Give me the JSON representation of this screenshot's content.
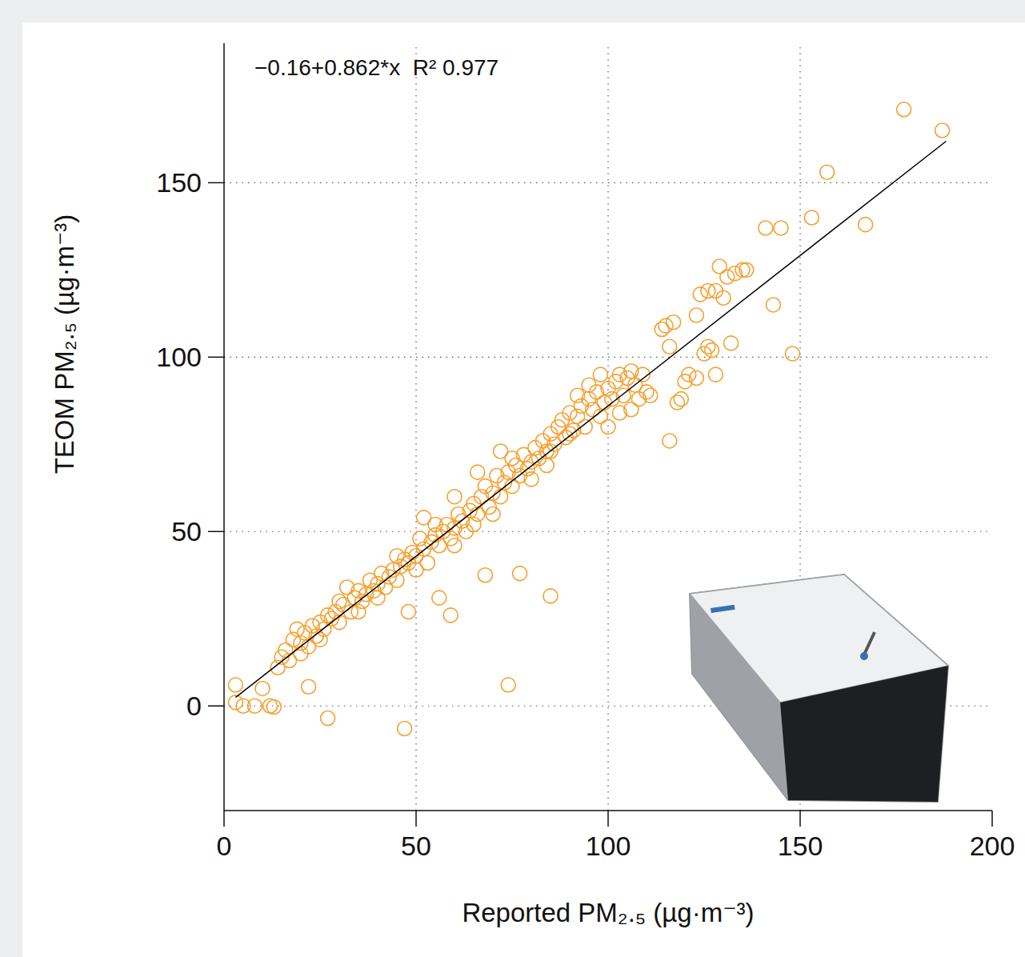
{
  "chart_data": {
    "type": "scatter",
    "x_label": "Reported PM₂.₅ (µg·m⁻³)",
    "y_label": "TEOM PM₂.₅ (µg·m⁻³)",
    "xlim": [
      0,
      200
    ],
    "ylim": [
      -30,
      190
    ],
    "xticks": [
      0,
      50,
      100,
      150,
      200
    ],
    "yticks": [
      0,
      50,
      100,
      150
    ],
    "grid": true,
    "fit": {
      "label": "−0.16+0.862*x  R² 0.977",
      "intercept": -0.16,
      "slope": 0.862,
      "x": [
        3,
        188
      ]
    },
    "series": [
      {
        "color": "#f5a030",
        "marker": "circle",
        "x": [
          3,
          3,
          5,
          8,
          10,
          12,
          13,
          22,
          27,
          47,
          74,
          77,
          68,
          59,
          48,
          85,
          116,
          118,
          143,
          148,
          167,
          153,
          157,
          177,
          187,
          141,
          145,
          133,
          135,
          136,
          129,
          130,
          131,
          132,
          126,
          125,
          127,
          123,
          124,
          126,
          128,
          128,
          123,
          114,
          115,
          116,
          117,
          120,
          119,
          121,
          111,
          14,
          15,
          16,
          17,
          18,
          19,
          20,
          21,
          22,
          23,
          24,
          25,
          26,
          27,
          28,
          29,
          30,
          31,
          32,
          33,
          34,
          35,
          36,
          37,
          38,
          39,
          40,
          41,
          42,
          43,
          44,
          45,
          46,
          47,
          48,
          49,
          50,
          51,
          52,
          53,
          54,
          55,
          56,
          57,
          58,
          59,
          60,
          61,
          62,
          63,
          64,
          65,
          66,
          67,
          68,
          69,
          70,
          71,
          72,
          73,
          74,
          75,
          76,
          77,
          78,
          79,
          80,
          81,
          82,
          83,
          84,
          85,
          86,
          87,
          88,
          89,
          90,
          91,
          92,
          93,
          94,
          95,
          96,
          97,
          98,
          99,
          100,
          101,
          102,
          103,
          104,
          105,
          106,
          107,
          108,
          109,
          110,
          20,
          25,
          30,
          35,
          40,
          45,
          50,
          55,
          60,
          65,
          70,
          75,
          80,
          85,
          90,
          95,
          100,
          103,
          106,
          52,
          56,
          60,
          66,
          72,
          84,
          92,
          98
        ],
        "values": [
          6,
          1,
          0,
          0,
          5,
          0,
          -0.3,
          5.5,
          -3.5,
          -6.5,
          6,
          38,
          37.5,
          26,
          27,
          31.5,
          76,
          87,
          115,
          101,
          138,
          140,
          153,
          171,
          165,
          137,
          137,
          124,
          125,
          125,
          126,
          117,
          123,
          104,
          103,
          101,
          102,
          112,
          118,
          119,
          119,
          95,
          94,
          108,
          109,
          103,
          110,
          93,
          88,
          95,
          89,
          11,
          14,
          16,
          13,
          19,
          22,
          18,
          21,
          17,
          23,
          20,
          24,
          22,
          26,
          25,
          27,
          24,
          29,
          34,
          27,
          31,
          33,
          30,
          32,
          36,
          33,
          35,
          38,
          34,
          37,
          39,
          36,
          40,
          42,
          41,
          44,
          43,
          48,
          45,
          41,
          47,
          49,
          46,
          50,
          52,
          48,
          51,
          55,
          53,
          50,
          56,
          58,
          55,
          60,
          63,
          57,
          61,
          66,
          60,
          64,
          67,
          63,
          69,
          66,
          72,
          68,
          70,
          74,
          71,
          76,
          73,
          78,
          75,
          80,
          82,
          77,
          84,
          79,
          83,
          86,
          80,
          88,
          85,
          90,
          83,
          87,
          91,
          88,
          93,
          95,
          89,
          94,
          96,
          92,
          88,
          95,
          90,
          15,
          19,
          30,
          27,
          31,
          43,
          39,
          52,
          46,
          52,
          55,
          71,
          65,
          73,
          78,
          92,
          80,
          84,
          85,
          54,
          31,
          60,
          67,
          73,
          69,
          89,
          95
        ]
      }
    ]
  }
}
